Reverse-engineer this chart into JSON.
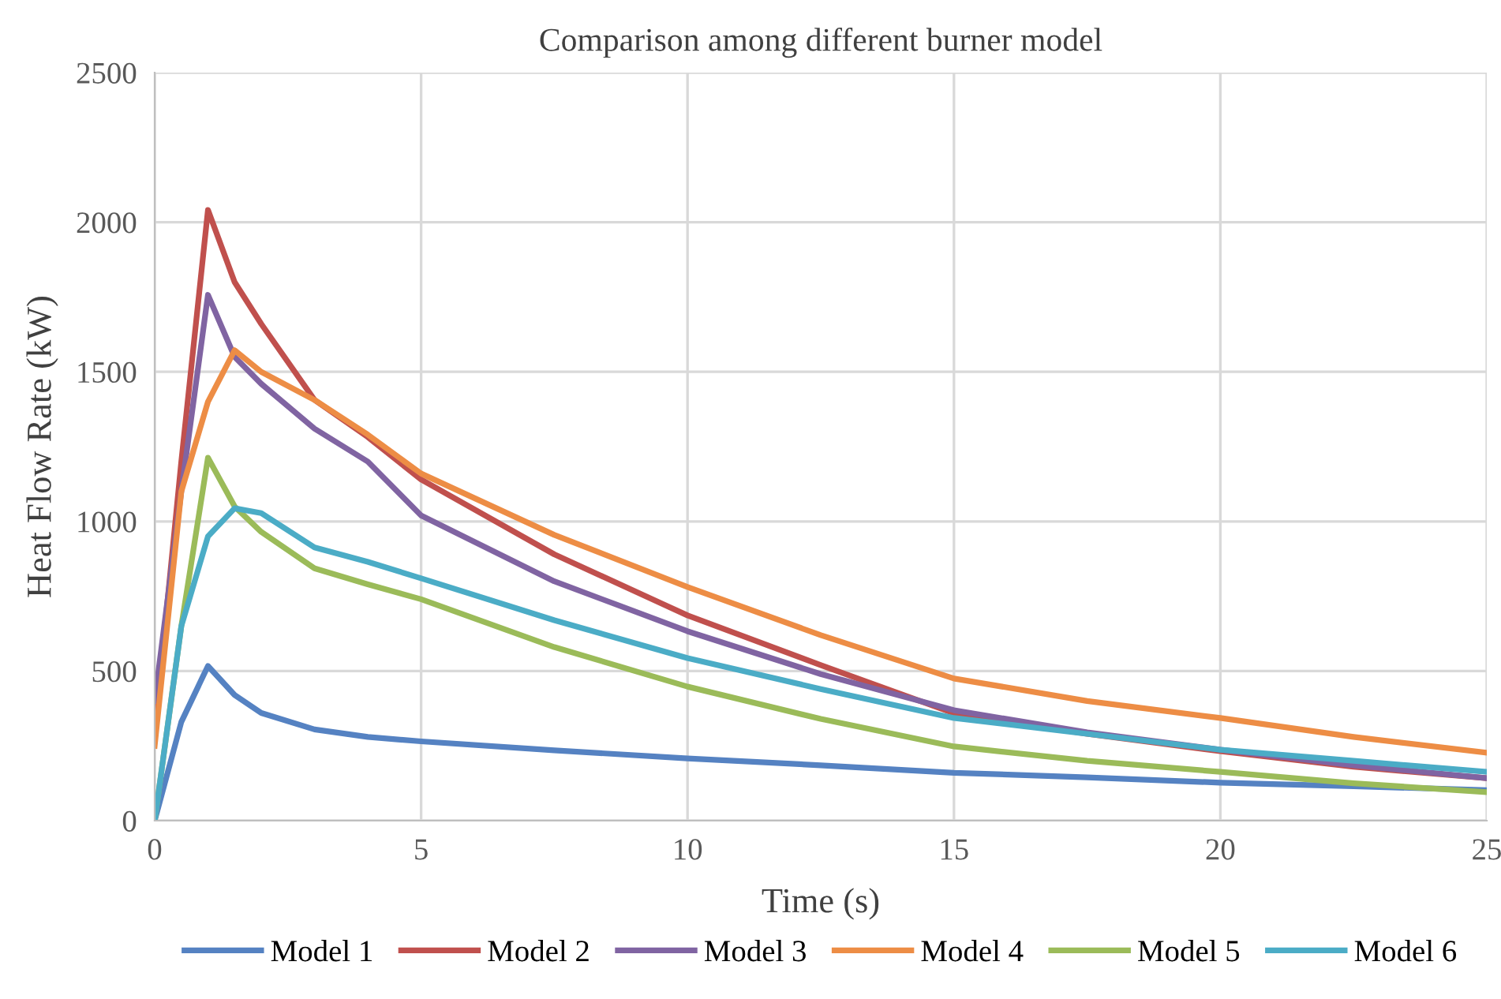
{
  "chart_data": {
    "type": "line",
    "title": "Comparison among different burner model",
    "xlabel": "Time (s)",
    "ylabel": "Heat Flow Rate (kW)",
    "x": [
      0,
      0.5,
      1,
      1.5,
      2,
      3,
      4,
      5,
      7.5,
      10,
      12.5,
      15,
      17.5,
      20,
      22.5,
      25
    ],
    "series": [
      {
        "name": "Model 1",
        "color": "#5582c2",
        "values": [
          0,
          330,
          517,
          420,
          360,
          305,
          280,
          265,
          235,
          208,
          185,
          160,
          145,
          127,
          115,
          102
        ]
      },
      {
        "name": "Model 2",
        "color": "#c0504d",
        "values": [
          300,
          1200,
          2041,
          1800,
          1660,
          1406,
          1282,
          1140,
          890,
          686,
          520,
          359,
          290,
          232,
          180,
          142
        ]
      },
      {
        "name": "Model 3",
        "color": "#8064a2",
        "values": [
          400,
          1100,
          1757,
          1550,
          1460,
          1310,
          1200,
          1020,
          800,
          633,
          490,
          369,
          295,
          237,
          185,
          142
        ]
      },
      {
        "name": "Model 4",
        "color": "#ed8d45",
        "values": [
          250,
          1100,
          1400,
          1572,
          1500,
          1406,
          1290,
          1160,
          955,
          781,
          620,
          475,
          400,
          343,
          280,
          227
        ]
      },
      {
        "name": "Model 5",
        "color": "#9bbb59",
        "values": [
          0,
          650,
          1213,
          1050,
          965,
          843,
          790,
          740,
          580,
          448,
          340,
          248,
          200,
          163,
          125,
          95
        ]
      },
      {
        "name": "Model 6",
        "color": "#4bacc6",
        "values": [
          0,
          650,
          950,
          1044,
          1028,
          913,
          865,
          810,
          670,
          543,
          440,
          343,
          290,
          237,
          200,
          163
        ]
      }
    ],
    "xlim": [
      0,
      25
    ],
    "xticks": [
      0,
      5,
      10,
      15,
      20,
      25
    ],
    "ylim": [
      0,
      2500
    ],
    "yticks": [
      0,
      500,
      1000,
      1500,
      2000,
      2500
    ],
    "grid": true,
    "legend": "bottom",
    "marker": "none",
    "line_style": "solid"
  }
}
